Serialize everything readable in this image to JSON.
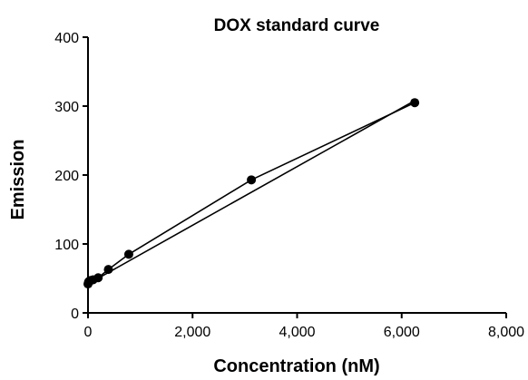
{
  "chart_data": {
    "type": "scatter",
    "title": "DOX standard curve",
    "xlabel": "Concentration (nM)",
    "ylabel": "Emission",
    "xlim": [
      0,
      8000
    ],
    "ylim": [
      0,
      400
    ],
    "x_ticks": [
      "0",
      "2,000",
      "4,000",
      "6,000",
      "8,000"
    ],
    "y_ticks": [
      "0",
      "100",
      "200",
      "300",
      "400"
    ],
    "x_tick_values": [
      0,
      2000,
      4000,
      6000,
      8000
    ],
    "y_tick_values": [
      0,
      100,
      200,
      300,
      400
    ],
    "grid": false,
    "colors": {
      "points": "#000000",
      "lines": "#000000",
      "axes": "#000000"
    },
    "series": [
      {
        "points": [
          {
            "x": 0,
            "y": 42
          },
          {
            "x": 12,
            "y": 45
          },
          {
            "x": 25,
            "y": 46
          },
          {
            "x": 50,
            "y": 47
          },
          {
            "x": 98,
            "y": 48
          },
          {
            "x": 195,
            "y": 51
          },
          {
            "x": 390,
            "y": 63
          },
          {
            "x": 780,
            "y": 85
          },
          {
            "x": 3125,
            "y": 193
          },
          {
            "x": 6250,
            "y": 305
          }
        ]
      }
    ],
    "fit_line": {
      "x": [
        0,
        6250
      ],
      "y": [
        42,
        308
      ]
    }
  }
}
